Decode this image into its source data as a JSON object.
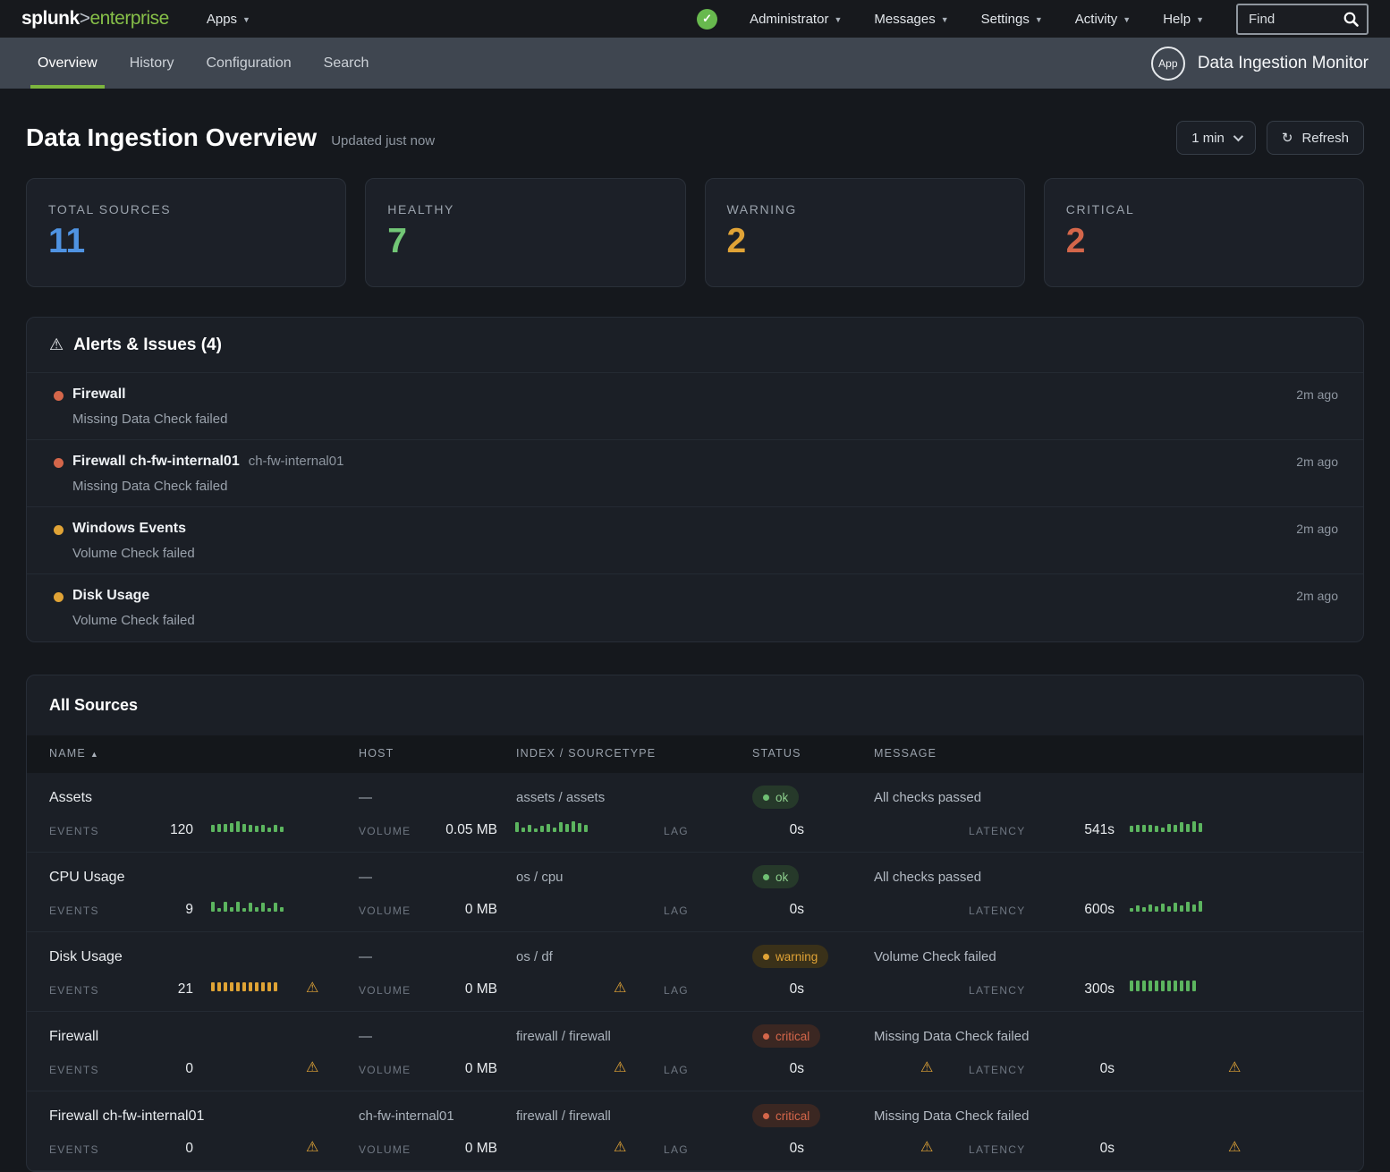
{
  "colors": {
    "accent_green": "#7cb53e",
    "blue": "#4f93e2",
    "healthy_green": "#72c776",
    "warning_orange": "#e0a336",
    "critical_red": "#d4664a",
    "spark_green": "#5cb55f",
    "spark_orange": "#dfa335"
  },
  "topnav": {
    "logo_splunk": "splunk",
    "logo_gt": ">",
    "logo_product": "enterprise",
    "apps_label": "Apps",
    "status_check": "✓",
    "menus": [
      "Administrator",
      "Messages",
      "Settings",
      "Activity",
      "Help"
    ],
    "find_placeholder": "Find"
  },
  "appbar": {
    "tabs": [
      {
        "label": "Overview",
        "active": true
      },
      {
        "label": "History",
        "active": false
      },
      {
        "label": "Configuration",
        "active": false
      },
      {
        "label": "Search",
        "active": false
      }
    ],
    "app_badge_label": "App",
    "app_title": "Data Ingestion Monitor"
  },
  "header": {
    "title": "Data Ingestion Overview",
    "updated_text": "Updated just now",
    "interval_value": "1 min",
    "refresh_icon": "↻",
    "refresh_label": "Refresh"
  },
  "stat_cards": [
    {
      "label": "TOTAL SOURCES",
      "value": "11",
      "color": "#4f93e2"
    },
    {
      "label": "HEALTHY",
      "value": "7",
      "color": "#72c776"
    },
    {
      "label": "WARNING",
      "value": "2",
      "color": "#e0a336"
    },
    {
      "label": "CRITICAL",
      "value": "2",
      "color": "#d4664a"
    }
  ],
  "alerts_panel": {
    "title": "Alerts & Issues (4)",
    "warn_icon": "⚠",
    "items": [
      {
        "severity": "critical",
        "name": "Firewall",
        "host": "",
        "message": "Missing Data Check failed",
        "time": "2m ago"
      },
      {
        "severity": "critical",
        "name": "Firewall ch-fw-internal01",
        "host": "ch-fw-internal01",
        "message": "Missing Data Check failed",
        "time": "2m ago"
      },
      {
        "severity": "warning",
        "name": "Windows Events",
        "host": "",
        "message": "Volume Check failed",
        "time": "2m ago"
      },
      {
        "severity": "warning",
        "name": "Disk Usage",
        "host": "",
        "message": "Volume Check failed",
        "time": "2m ago"
      }
    ]
  },
  "sources_panel": {
    "title": "All Sources",
    "columns": {
      "name": "NAME",
      "sort_arrow": "▲",
      "host": "HOST",
      "index": "INDEX / SOURCETYPE",
      "status": "STATUS",
      "message": "MESSAGE"
    },
    "metric_labels": {
      "events": "EVENTS",
      "volume": "VOLUME",
      "lag": "LAG",
      "latency": "LATENCY"
    },
    "status_badges": {
      "ok": {
        "label": "ok",
        "text_color": "#8ed08e",
        "bg": "#26392a",
        "dot": "#6fbf73"
      },
      "warning": {
        "label": "warning",
        "text_color": "#e0a336",
        "bg": "#3a3119",
        "dot": "#e0a336"
      },
      "critical": {
        "label": "critical",
        "text_color": "#d4664a",
        "bg": "#3b2722",
        "dot": "#d4664a"
      }
    },
    "warn_icon": "⚠",
    "rows": [
      {
        "name": "Assets",
        "host": "—",
        "index": "assets / assets",
        "status": "ok",
        "message": "All checks passed",
        "events": {
          "value": "120",
          "spark": [
            8,
            9,
            9,
            10,
            12,
            9,
            8,
            7,
            8,
            5,
            8,
            6
          ],
          "spark_color": "green",
          "warn": false
        },
        "volume": {
          "value": "0.05 MB",
          "spark": [
            11,
            5,
            8,
            4,
            7,
            9,
            5,
            11,
            9,
            12,
            10,
            8
          ],
          "spark_color": "green",
          "warn": false
        },
        "lag": {
          "value": "0s",
          "warn": false
        },
        "latency": {
          "value": "541s",
          "spark": [
            7,
            8,
            8,
            8,
            7,
            5,
            9,
            8,
            11,
            9,
            12,
            10
          ],
          "spark_color": "green",
          "warn": false
        }
      },
      {
        "name": "CPU Usage",
        "host": "—",
        "index": "os / cpu",
        "status": "ok",
        "message": "All checks passed",
        "events": {
          "value": "9",
          "spark": [
            11,
            4,
            11,
            5,
            11,
            4,
            10,
            5,
            10,
            4,
            10,
            5
          ],
          "spark_color": "green",
          "warn": false
        },
        "volume": {
          "value": "0 MB",
          "spark": null,
          "warn": false
        },
        "lag": {
          "value": "0s",
          "warn": false
        },
        "latency": {
          "value": "600s",
          "spark": [
            4,
            7,
            5,
            8,
            6,
            9,
            6,
            10,
            7,
            11,
            8,
            12
          ],
          "spark_color": "green",
          "warn": false
        }
      },
      {
        "name": "Disk Usage",
        "host": "—",
        "index": "os / df",
        "status": "warning",
        "message": "Volume Check failed",
        "events": {
          "value": "21",
          "spark": [
            10,
            10,
            10,
            10,
            10,
            10,
            10,
            10,
            10,
            10,
            10
          ],
          "spark_color": "orange",
          "warn": true
        },
        "volume": {
          "value": "0 MB",
          "spark": null,
          "warn": true
        },
        "lag": {
          "value": "0s",
          "warn": false
        },
        "latency": {
          "value": "300s",
          "spark": [
            12,
            12,
            12,
            12,
            12,
            12,
            12,
            12,
            12,
            12,
            12
          ],
          "spark_color": "green",
          "warn": false
        }
      },
      {
        "name": "Firewall",
        "host": "—",
        "index": "firewall / firewall",
        "status": "critical",
        "message": "Missing Data Check failed",
        "events": {
          "value": "0",
          "spark": null,
          "warn": true
        },
        "volume": {
          "value": "0 MB",
          "spark": null,
          "warn": true
        },
        "lag": {
          "value": "0s",
          "warn": true
        },
        "latency": {
          "value": "0s",
          "spark": null,
          "warn": true
        }
      },
      {
        "name": "Firewall ch-fw-internal01",
        "host": "ch-fw-internal01",
        "index": "firewall / firewall",
        "status": "critical",
        "message": "Missing Data Check failed",
        "events": {
          "value": "0",
          "spark": null,
          "warn": true
        },
        "volume": {
          "value": "0 MB",
          "spark": null,
          "warn": true
        },
        "lag": {
          "value": "0s",
          "warn": true
        },
        "latency": {
          "value": "0s",
          "spark": null,
          "warn": true
        }
      }
    ]
  }
}
